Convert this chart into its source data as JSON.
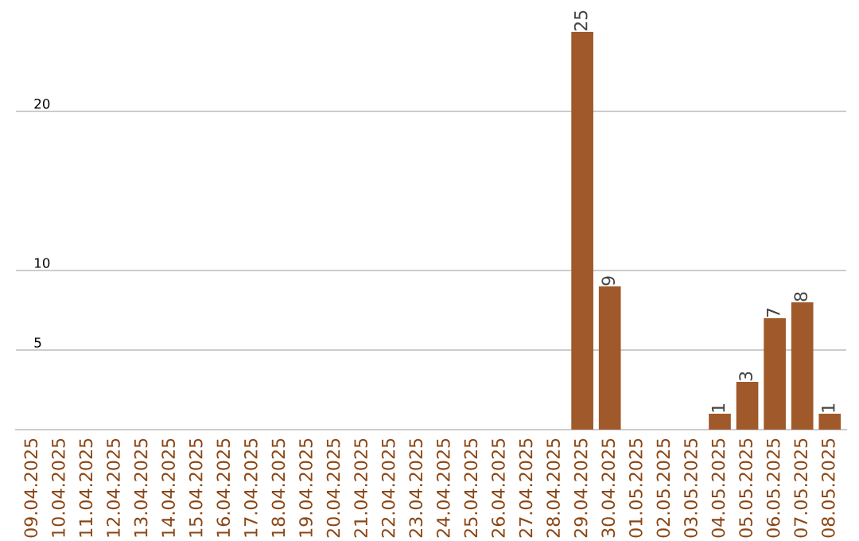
{
  "chart_data": {
    "type": "bar",
    "categories": [
      "09.04.2025",
      "10.04.2025",
      "11.04.2025",
      "12.04.2025",
      "13.04.2025",
      "14.04.2025",
      "15.04.2025",
      "16.04.2025",
      "17.04.2025",
      "18.04.2025",
      "19.04.2025",
      "20.04.2025",
      "21.04.2025",
      "22.04.2025",
      "23.04.2025",
      "24.04.2025",
      "25.04.2025",
      "26.04.2025",
      "27.04.2025",
      "28.04.2025",
      "29.04.2025",
      "30.04.2025",
      "01.05.2025",
      "02.05.2025",
      "03.05.2025",
      "04.05.2025",
      "05.05.2025",
      "06.05.2025",
      "07.05.2025",
      "08.05.2025"
    ],
    "values": [
      0,
      0,
      0,
      0,
      0,
      0,
      0,
      0,
      0,
      0,
      0,
      0,
      0,
      0,
      0,
      0,
      0,
      0,
      0,
      0,
      25,
      9,
      0,
      0,
      0,
      1,
      3,
      7,
      8,
      1
    ],
    "value_labels": [
      null,
      null,
      null,
      null,
      null,
      null,
      null,
      null,
      null,
      null,
      null,
      null,
      null,
      null,
      null,
      null,
      null,
      null,
      null,
      null,
      "25",
      "9",
      null,
      null,
      null,
      "1",
      "3",
      "7",
      "8",
      "1"
    ],
    "color": "#a0592a",
    "ylim": [
      0,
      25
    ],
    "yticks": [
      5,
      10,
      20
    ],
    "grid": "y",
    "legend": false
  }
}
